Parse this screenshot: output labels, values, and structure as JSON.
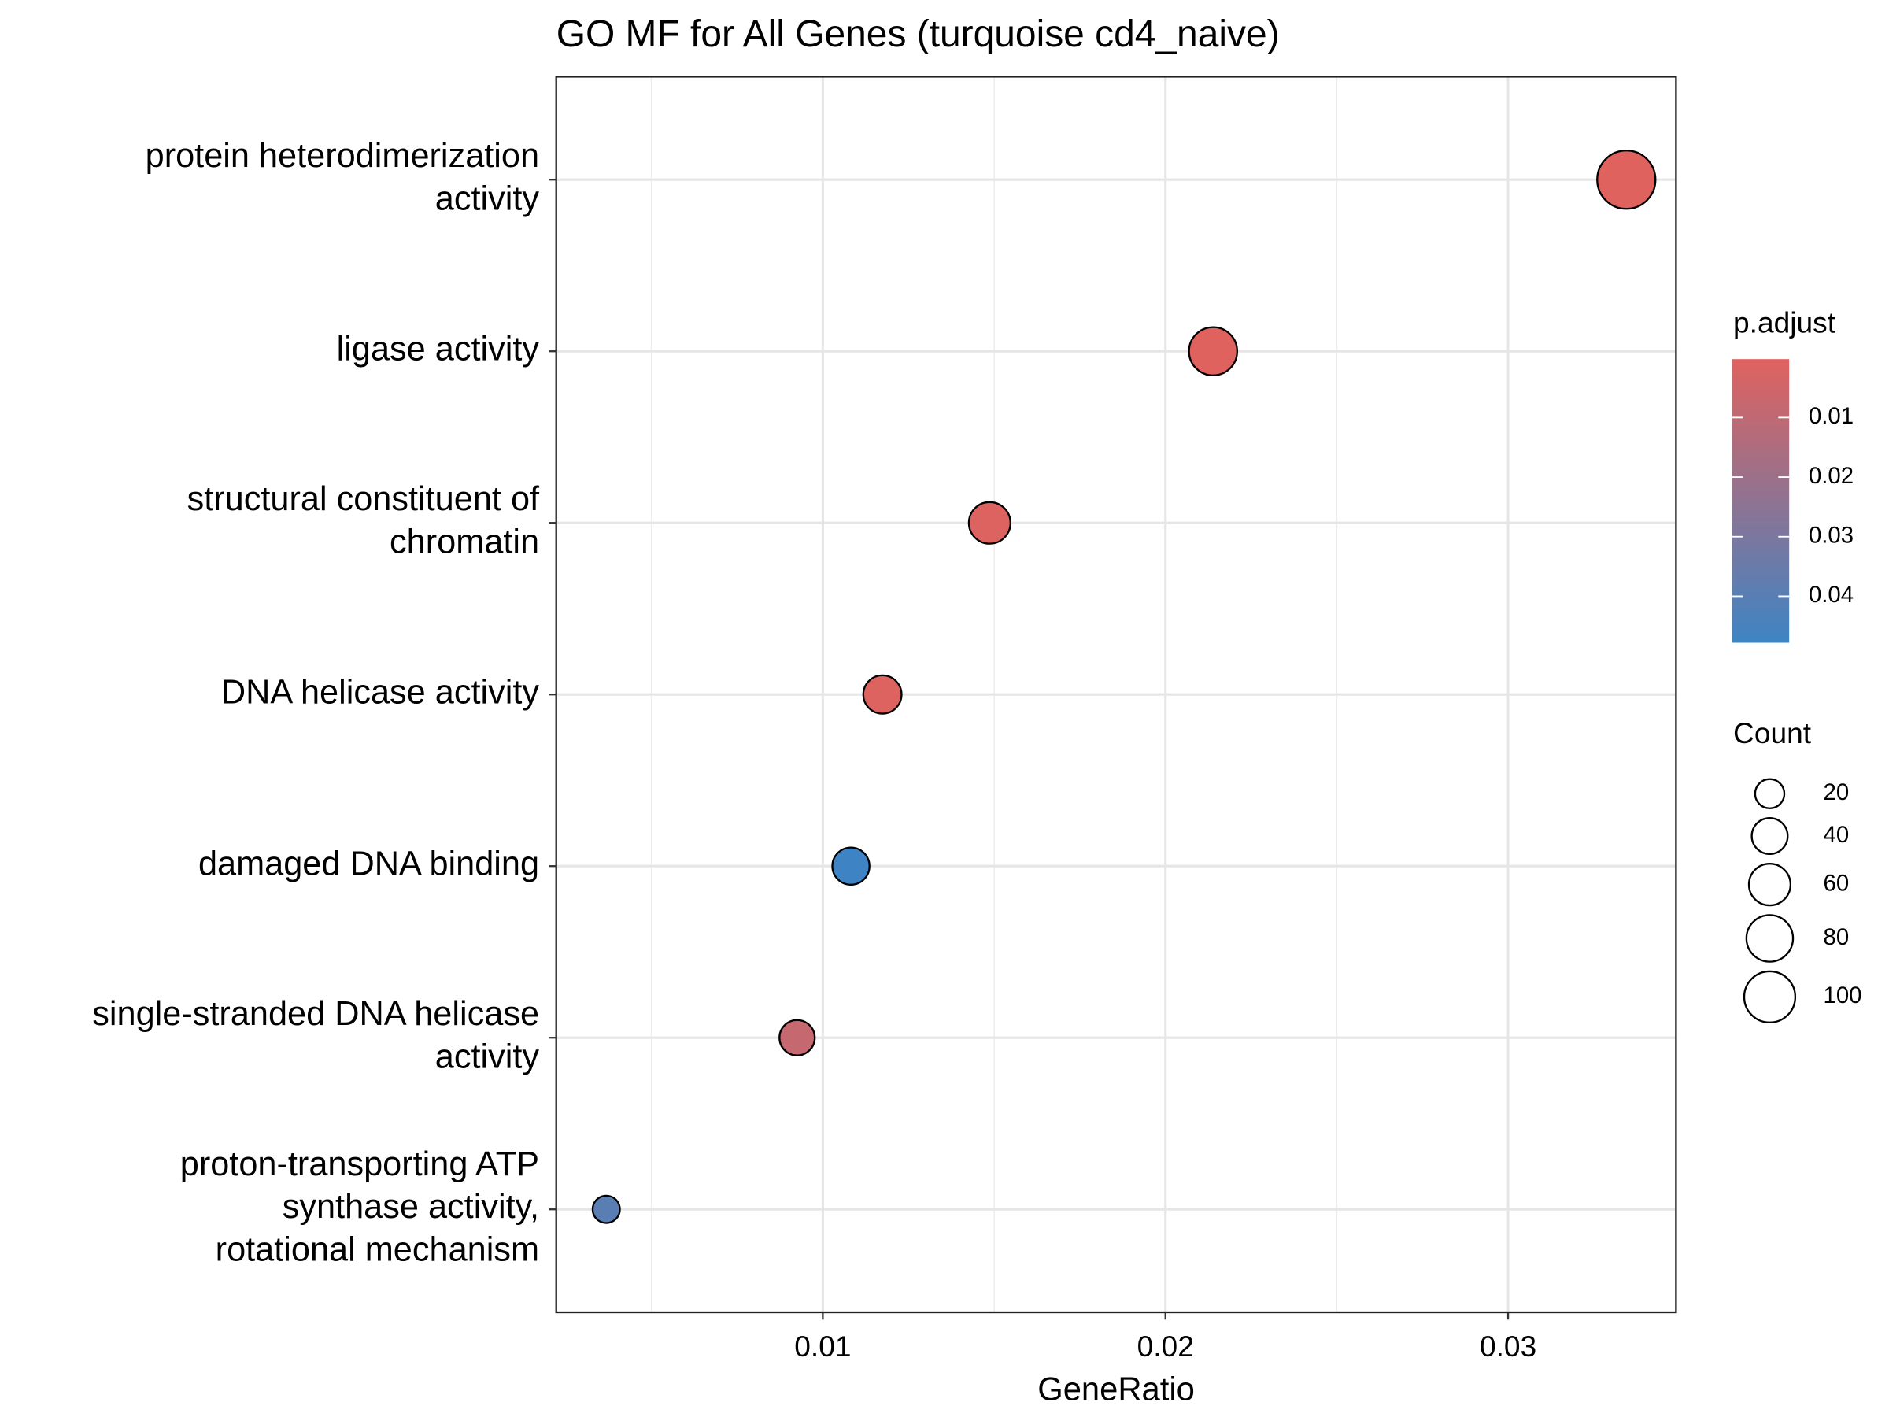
{
  "chart_data": {
    "type": "dot",
    "title": "GO MF for All Genes (turquoise cd4_naive)",
    "x_label": "GeneRatio",
    "categories": [
      "protein heterodimerization\nactivity",
      "ligase activity",
      "structural constituent of\nchromatin",
      "DNA helicase activity",
      "damaged DNA binding",
      "single-stranded DNA helicase\nactivity",
      "proton-transporting ATP\nsynthase activity,\nrotational mechanism"
    ],
    "x": [
      0.03345,
      0.02139,
      0.01487,
      0.01174,
      0.01082,
      0.00925,
      0.00368
    ],
    "count": [
      136,
      87,
      60,
      48,
      44,
      38,
      15
    ],
    "p_adjust": [
      0.0002,
      0.0003,
      0.001,
      0.001,
      0.0478,
      0.008,
      0.04
    ],
    "xlim": [
      0.00222,
      0.0349
    ],
    "xticks": [
      0.01,
      0.02,
      0.03
    ],
    "grid": true,
    "color_scale": {
      "title": "p.adjust",
      "lim": [
        0.0002,
        0.0478
      ],
      "ticks": [
        0.01,
        0.02,
        0.03,
        0.04
      ],
      "colors": [
        "#e0625f",
        "#3e84c4"
      ]
    },
    "size_legend": {
      "title": "Count",
      "breaks": [
        20,
        40,
        60,
        80,
        100
      ]
    },
    "legend": "right"
  }
}
